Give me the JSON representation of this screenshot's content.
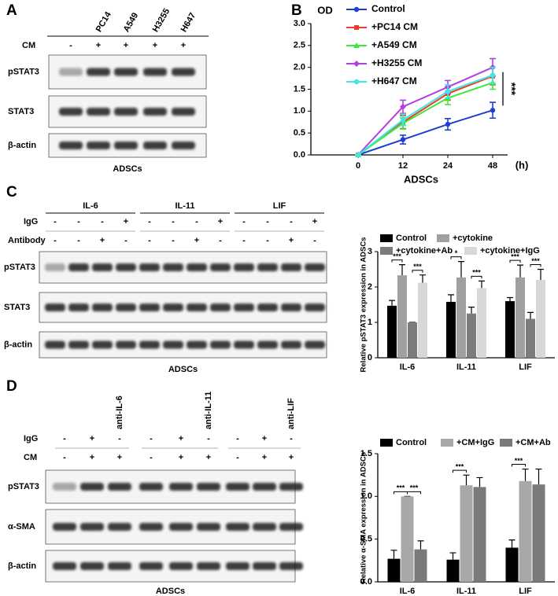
{
  "panels": [
    "A",
    "B",
    "C",
    "D"
  ],
  "blot_a": {
    "lane_labels": [
      null,
      "PC14",
      "A549",
      "H3255",
      "H647"
    ],
    "rows": [
      {
        "label": "CM",
        "signs": [
          "-",
          "+",
          "+",
          "+",
          "+"
        ]
      }
    ],
    "blots": [
      "pSTAT3",
      "STAT3",
      "β-actin"
    ],
    "caption": "ADSCs"
  },
  "blot_c": {
    "groups": [
      "IL-6",
      "IL-11",
      "LIF"
    ],
    "rows": [
      {
        "label": "IgG",
        "signs": [
          "-",
          "-",
          "-",
          "+",
          "-",
          "-",
          "-",
          "+",
          "-",
          "-",
          "-",
          "+"
        ]
      },
      {
        "label": "Antibody",
        "signs": [
          "-",
          "-",
          "+",
          "-",
          "-",
          "-",
          "+",
          "-",
          "-",
          "-",
          "+",
          "-"
        ]
      }
    ],
    "blots": [
      "pSTAT3",
      "STAT3",
      "β-actin"
    ],
    "caption": "ADSCs"
  },
  "blot_d": {
    "lane_labels": [
      null,
      null,
      "anti-IL-6",
      null,
      null,
      "anti-IL-11",
      null,
      null,
      "anti-LIF"
    ],
    "rows": [
      {
        "label": "IgG",
        "signs": [
          "-",
          "+",
          "-",
          "-",
          "+",
          "-",
          "-",
          "+",
          "-"
        ]
      },
      {
        "label": "CM",
        "signs": [
          "-",
          "+",
          "+",
          "-",
          "+",
          "+",
          "-",
          "+",
          "+"
        ]
      }
    ],
    "blots": [
      "pSTAT3",
      "α-SMA",
      "β-actin"
    ],
    "caption": "ADSCs"
  },
  "chart_data": [
    {
      "type": "line",
      "y_label": "OD",
      "x_label": "ADSCs",
      "x_unit": "(h)",
      "categories": [
        "0",
        "12",
        "24",
        "48"
      ],
      "ylim": [
        0,
        3
      ],
      "yticks": [
        {
          "value": 0,
          "label": "0.0"
        },
        {
          "value": 0.5,
          "label": "0.5"
        },
        {
          "value": 1,
          "label": "1.0"
        },
        {
          "value": 1.5,
          "label": "1.5"
        },
        {
          "value": 2,
          "label": "2.0"
        },
        {
          "value": 2.5,
          "label": "2.5"
        },
        {
          "value": 3,
          "label": "3.0"
        }
      ],
      "series": [
        {
          "name": "Control",
          "color": "#1f3fd4",
          "values": [
            0,
            0.35,
            0.7,
            1.02
          ],
          "errors": [
            0,
            0.1,
            0.13,
            0.18
          ]
        },
        {
          "name": "+PC14 CM",
          "color": "#e8402a",
          "values": [
            0,
            0.75,
            1.4,
            1.8
          ],
          "errors": [
            0,
            0.15,
            0.15,
            0.2
          ]
        },
        {
          "name": "+A549 CM",
          "color": "#3ee83a",
          "values": [
            0,
            0.72,
            1.3,
            1.65
          ],
          "errors": [
            0,
            0.13,
            0.15,
            0.15
          ]
        },
        {
          "name": "+H3255 CM",
          "color": "#b43fe0",
          "values": [
            0,
            1.1,
            1.55,
            2.0
          ],
          "errors": [
            0,
            0.15,
            0.15,
            0.2
          ]
        },
        {
          "name": "+H647 CM",
          "color": "#3ee6e6",
          "values": [
            0,
            0.8,
            1.45,
            1.82
          ],
          "errors": [
            0,
            0.13,
            0.15,
            0.18
          ]
        }
      ],
      "significance": {
        "label": "***"
      }
    },
    {
      "type": "bar",
      "y_label": "Relative pSTAT3 expression in ADSCs",
      "categories": [
        "IL-6",
        "IL-11",
        "LIF"
      ],
      "ylim": [
        0,
        3
      ],
      "yticks": [
        0,
        1,
        2,
        3
      ],
      "series": [
        {
          "name": "Control",
          "color": "#000000",
          "values": [
            1.47,
            1.58,
            1.6
          ],
          "errors": [
            0.15,
            0.2,
            0.1
          ]
        },
        {
          "name": "+cytokine",
          "color": "#a0a0a0",
          "values": [
            2.33,
            2.27,
            2.27
          ],
          "errors": [
            0.3,
            0.45,
            0.35
          ]
        },
        {
          "name": "+cytokine+Ab",
          "color": "#7c7c7c",
          "values": [
            1.0,
            1.25,
            1.1
          ],
          "errors": [
            0,
            0.18,
            0.18
          ]
        },
        {
          "name": "+cytokine+IgG",
          "color": "#d8d8d8",
          "values": [
            2.12,
            1.97,
            2.2
          ],
          "errors": [
            0.22,
            0.2,
            0.3
          ]
        }
      ],
      "significance": [
        {
          "category": 0,
          "pair": [
            0,
            1
          ],
          "label": "***"
        },
        {
          "category": 0,
          "pair": [
            2,
            3
          ],
          "label": "***"
        },
        {
          "category": 1,
          "pair": [
            0,
            1
          ],
          "label": "*"
        },
        {
          "category": 1,
          "pair": [
            2,
            3
          ],
          "label": "***"
        },
        {
          "category": 2,
          "pair": [
            0,
            1
          ],
          "label": "***"
        },
        {
          "category": 2,
          "pair": [
            2,
            3
          ],
          "label": "***"
        }
      ]
    },
    {
      "type": "bar",
      "y_label": "Relative α-SMA expression in ADSCs",
      "categories": [
        "IL-6",
        "IL-11",
        "LIF"
      ],
      "ylim": [
        0,
        1.5
      ],
      "yticks": [
        {
          "value": 0,
          "label": "0.0"
        },
        {
          "value": 0.5,
          "label": "0.5"
        },
        {
          "value": 1,
          "label": "1.0"
        },
        {
          "value": 1.5,
          "label": "1.5"
        }
      ],
      "series": [
        {
          "name": "Control",
          "color": "#000000",
          "values": [
            0.27,
            0.26,
            0.4
          ],
          "errors": [
            0.1,
            0.08,
            0.09
          ]
        },
        {
          "name": "+CM+IgG",
          "color": "#a8a8a8",
          "values": [
            1.0,
            1.13,
            1.18
          ],
          "errors": [
            0,
            0.12,
            0.14
          ]
        },
        {
          "name": "+CM+Ab",
          "color": "#7a7a7a",
          "values": [
            0.38,
            1.11,
            1.14
          ],
          "errors": [
            0.1,
            0.11,
            0.18
          ]
        }
      ],
      "significance": [
        {
          "category": 0,
          "pair": [
            0,
            1
          ],
          "label": "***"
        },
        {
          "category": 0,
          "pair": [
            1,
            2
          ],
          "label": "***"
        },
        {
          "category": 1,
          "pair": [
            0,
            1
          ],
          "label": "***"
        },
        {
          "category": 2,
          "pair": [
            0,
            1
          ],
          "label": "***"
        }
      ]
    }
  ]
}
